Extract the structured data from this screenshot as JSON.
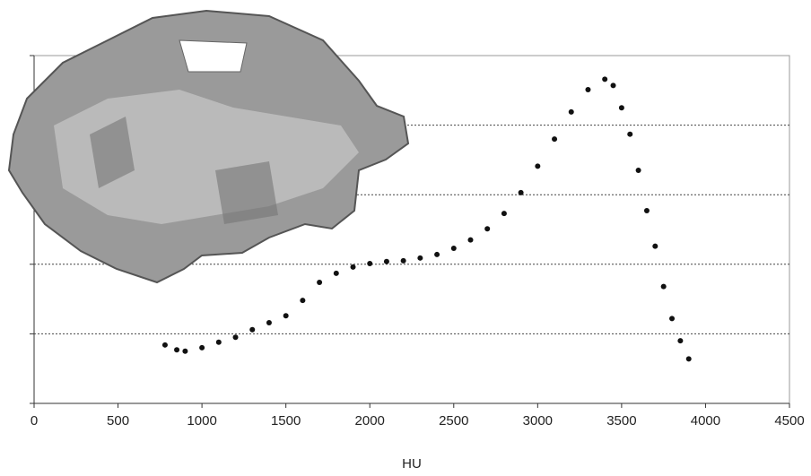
{
  "chart_data": {
    "type": "scatter",
    "x_label": "HU",
    "x": [
      780,
      850,
      900,
      1000,
      1100,
      1200,
      1300,
      1400,
      1500,
      1600,
      1700,
      1800,
      1900,
      2000,
      2100,
      2200,
      2300,
      2400,
      2500,
      2600,
      2700,
      2800,
      2900,
      3000,
      3100,
      3200,
      3300,
      3400,
      3450,
      3500,
      3550,
      3600,
      3650,
      3700,
      3750,
      3800,
      3850,
      3900
    ],
    "values": [
      0.84,
      0.77,
      0.75,
      0.8,
      0.88,
      0.95,
      1.06,
      1.16,
      1.26,
      1.48,
      1.74,
      1.87,
      1.96,
      2.01,
      2.04,
      2.05,
      2.09,
      2.14,
      2.23,
      2.35,
      2.51,
      2.73,
      3.03,
      3.41,
      3.8,
      4.19,
      4.51,
      4.66,
      4.57,
      4.25,
      3.87,
      3.35,
      2.77,
      2.26,
      1.68,
      1.22,
      0.9,
      0.64
    ],
    "color": "#111111",
    "xlim": [
      0,
      4500
    ],
    "xticks": [
      0,
      500,
      1000,
      1500,
      2000,
      2500,
      3000,
      3500,
      4000,
      4500
    ],
    "ylim": [
      0,
      5
    ],
    "yticks": [
      0,
      1,
      2,
      3,
      4,
      5
    ],
    "grid": true
  }
}
